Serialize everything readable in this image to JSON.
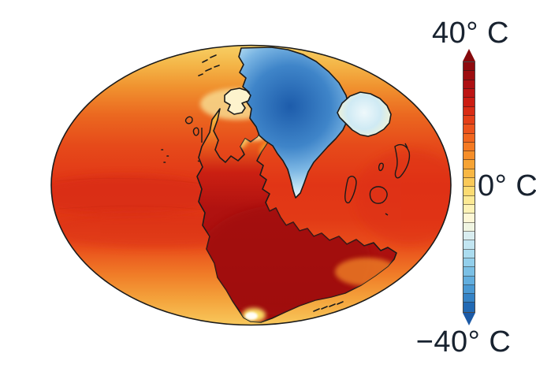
{
  "colorbar": {
    "labels": {
      "max": "40° C",
      "mid": "0° C",
      "min": "−40° C"
    },
    "values": {
      "max": 40,
      "mid": 0,
      "min": -40,
      "unit": "°C"
    },
    "label_color": "#18222f",
    "arrow_top": "#860a0d",
    "arrow_bottom": "#1c5aa6",
    "cells": [
      "#8f0a0e",
      "#9d0d10",
      "#ad1013",
      "#bd1514",
      "#cc1d13",
      "#d92c15",
      "#e43f18",
      "#ec531c",
      "#f1661e",
      "#f47a22",
      "#f58e29",
      "#f6a334",
      "#f8b743",
      "#fac958",
      "#fbdb72",
      "#fce994",
      "#fdf2b6",
      "#fdf7d6",
      "#f0f5e2",
      "#d9edf0",
      "#c2e5f1",
      "#abdcef",
      "#93cfeb",
      "#7bc0e5",
      "#62aede",
      "#4a99d3",
      "#3583c6",
      "#2169b4"
    ]
  },
  "map": {
    "outline": "#1a1a1a",
    "ocean_stops": [
      "#f7d065",
      "#f4b648",
      "#f0922f",
      "#eb6820",
      "#e64a1a",
      "#e13516",
      "#e23a16",
      "#e94e1b",
      "#f07d28",
      "#f4a43c",
      "#f8c95c"
    ],
    "land": {
      "supercontinent": [
        "#fceaa8",
        "#f6b93e",
        "#ea5e1d",
        "#cb2012",
        "#b01210",
        "#a30d0d"
      ],
      "polar": [
        "#1d5cab",
        "#3f85c9",
        "#7ab5e3",
        "#b9dff2",
        "#e8f4fa"
      ],
      "northeast_pale": [
        "#eef8fb",
        "#cfeaf4",
        "#eef2d8",
        "#fdf4d0"
      ],
      "northwest_cream": "#fdf3cd",
      "hotspot": "#ffffff",
      "hotspot_halo": "#ffe96a"
    }
  }
}
